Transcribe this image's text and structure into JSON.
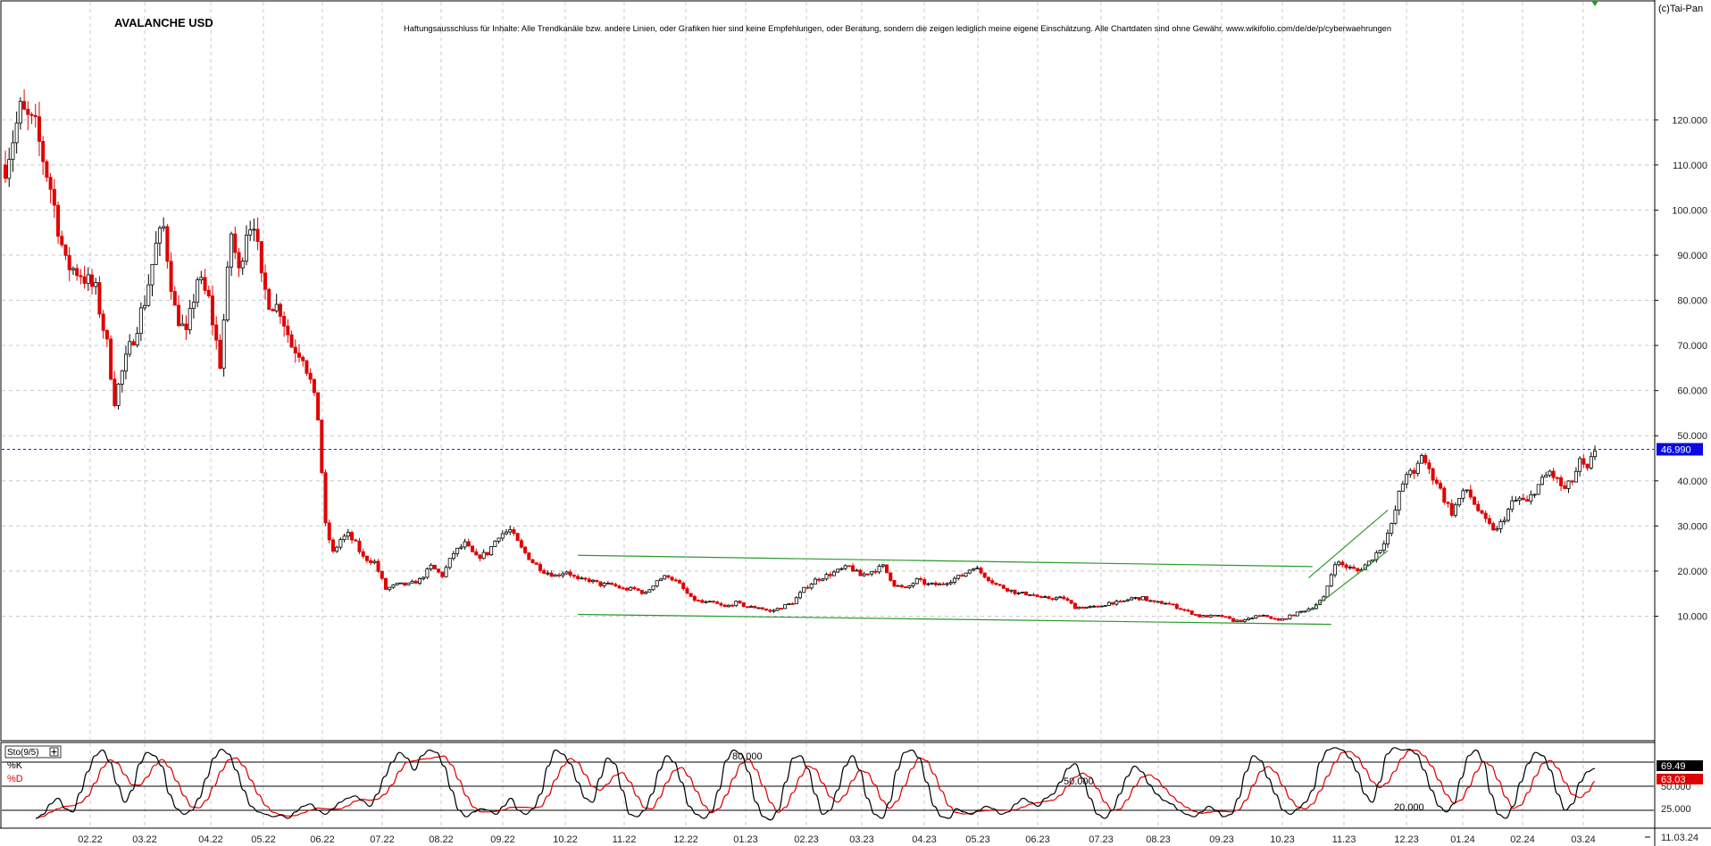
{
  "chart_data": [
    {
      "type": "candlestick",
      "title": "AVALANCHE USD",
      "disclaimer": "Haftungsausschluss für Inhalte: Alle Trendkanäle bzw. andere Linien, oder Grafiken hier sind keine Empfehlungen, oder Beratung, sondern die zeigen lediglich meine eigene Einschätzung. Alle Chartdaten sind ohne Gewähr. www.wikifolio.com/de/de/p/cyberwaehrungen",
      "copyright": "(c)Tai-Pan",
      "ylim": [
        0,
        127
      ],
      "yticks": [
        "120.000",
        "110.000",
        "100.000",
        "90.000",
        "80.000",
        "70.000",
        "60.000",
        "50.000",
        "40.000",
        "30.000",
        "20.000",
        "10.000"
      ],
      "ytick_values": [
        120,
        110,
        100,
        90,
        80,
        70,
        60,
        50,
        40,
        30,
        20,
        10
      ],
      "xticks": [
        "02.22",
        "03.22",
        "04.22",
        "05.22",
        "06.22",
        "07.22",
        "08.22",
        "09.22",
        "10.22",
        "11.22",
        "12.22",
        "01.23",
        "02.23",
        "03.23",
        "04.23",
        "05.23",
        "06.23",
        "07.23",
        "08.23",
        "09.23",
        "10.23",
        "11.23",
        "12.23",
        "01.24",
        "02.24",
        "03.24"
      ],
      "last_price": 46.99,
      "last_price_label": "46.990",
      "price_path": [
        [
          0,
          110
        ],
        [
          4,
          122
        ],
        [
          8,
          118
        ],
        [
          12,
          105
        ],
        [
          16,
          88
        ],
        [
          20,
          86
        ],
        [
          24,
          82
        ],
        [
          27,
          70
        ],
        [
          29,
          58
        ],
        [
          31,
          64
        ],
        [
          34,
          72
        ],
        [
          37,
          80
        ],
        [
          40,
          92
        ],
        [
          42,
          96
        ],
        [
          45,
          78
        ],
        [
          48,
          72
        ],
        [
          51,
          85
        ],
        [
          54,
          80
        ],
        [
          57,
          66
        ],
        [
          60,
          95
        ],
        [
          62,
          86
        ],
        [
          64,
          96
        ],
        [
          66,
          98
        ],
        [
          68,
          84
        ],
        [
          70,
          80
        ],
        [
          73,
          78
        ],
        [
          76,
          70
        ],
        [
          79,
          68
        ],
        [
          81,
          62
        ],
        [
          83,
          54
        ],
        [
          85,
          30
        ],
        [
          87,
          24
        ],
        [
          89,
          27
        ],
        [
          91,
          28
        ],
        [
          93,
          26
        ],
        [
          95,
          23
        ],
        [
          98,
          22
        ],
        [
          101,
          16
        ],
        [
          104,
          17
        ],
        [
          107,
          17
        ],
        [
          110,
          18
        ],
        [
          113,
          21
        ],
        [
          116,
          19
        ],
        [
          119,
          24
        ],
        [
          122,
          26
        ],
        [
          125,
          23
        ],
        [
          128,
          24
        ],
        [
          131,
          28
        ],
        [
          134,
          29
        ],
        [
          137,
          25
        ],
        [
          140,
          22
        ],
        [
          143,
          20
        ],
        [
          146,
          19
        ],
        [
          149,
          20
        ],
        [
          152,
          18
        ],
        [
          155,
          18
        ],
        [
          158,
          17
        ],
        [
          161,
          17
        ],
        [
          164,
          16
        ],
        [
          167,
          16
        ],
        [
          170,
          15
        ],
        [
          173,
          18
        ],
        [
          176,
          19
        ],
        [
          179,
          17
        ],
        [
          182,
          14
        ],
        [
          185,
          13
        ],
        [
          188,
          13
        ],
        [
          191,
          12
        ],
        [
          194,
          13
        ],
        [
          197,
          12
        ],
        [
          200,
          12
        ],
        [
          203,
          11
        ],
        [
          206,
          12
        ],
        [
          209,
          13
        ],
        [
          212,
          16
        ],
        [
          215,
          18
        ],
        [
          218,
          19
        ],
        [
          221,
          20
        ],
        [
          224,
          21
        ],
        [
          227,
          19
        ],
        [
          230,
          20
        ],
        [
          233,
          21
        ],
        [
          236,
          17
        ],
        [
          239,
          16
        ],
        [
          242,
          18
        ],
        [
          245,
          17
        ],
        [
          248,
          17
        ],
        [
          251,
          18
        ],
        [
          254,
          19
        ],
        [
          257,
          21
        ],
        [
          260,
          19
        ],
        [
          263,
          17
        ],
        [
          266,
          16
        ],
        [
          269,
          15
        ],
        [
          272,
          15
        ],
        [
          275,
          14
        ],
        [
          278,
          14
        ],
        [
          281,
          14
        ],
        [
          284,
          12
        ],
        [
          287,
          12
        ],
        [
          290,
          12
        ],
        [
          293,
          13
        ],
        [
          296,
          13
        ],
        [
          299,
          14
        ],
        [
          302,
          14
        ],
        [
          305,
          13
        ],
        [
          308,
          13
        ],
        [
          311,
          12
        ],
        [
          314,
          11
        ],
        [
          317,
          10
        ],
        [
          320,
          10
        ],
        [
          323,
          10
        ],
        [
          326,
          9
        ],
        [
          329,
          9
        ],
        [
          332,
          10
        ],
        [
          335,
          10
        ],
        [
          338,
          9
        ],
        [
          341,
          10
        ],
        [
          344,
          11
        ],
        [
          347,
          12
        ],
        [
          350,
          14
        ],
        [
          353,
          22
        ],
        [
          356,
          21
        ],
        [
          359,
          20
        ],
        [
          362,
          22
        ],
        [
          365,
          25
        ],
        [
          368,
          30
        ],
        [
          370,
          37
        ],
        [
          372,
          42
        ],
        [
          374,
          41
        ],
        [
          376,
          46
        ],
        [
          378,
          42
        ],
        [
          380,
          40
        ],
        [
          382,
          36
        ],
        [
          384,
          33
        ],
        [
          386,
          36
        ],
        [
          388,
          38
        ],
        [
          390,
          35
        ],
        [
          392,
          32
        ],
        [
          394,
          30
        ],
        [
          396,
          29
        ],
        [
          398,
          32
        ],
        [
          400,
          35
        ],
        [
          402,
          36
        ],
        [
          404,
          35
        ],
        [
          406,
          38
        ],
        [
          408,
          40
        ],
        [
          410,
          42
        ],
        [
          412,
          40
        ],
        [
          414,
          38
        ],
        [
          416,
          40
        ],
        [
          418,
          44
        ],
        [
          420,
          42
        ],
        [
          422,
          47
        ]
      ],
      "trend_lines": [
        {
          "name": "channel-upper",
          "from": [
            152,
            23.5
          ],
          "to": [
            347,
            21.0
          ]
        },
        {
          "name": "channel-lower",
          "from": [
            152,
            10.4
          ],
          "to": [
            352,
            8.2
          ]
        },
        {
          "name": "uptrend-upper",
          "from": [
            346,
            18.5
          ],
          "to": [
            367,
            33.5
          ]
        },
        {
          "name": "uptrend-lower",
          "from": [
            346,
            11.0
          ],
          "to": [
            367,
            24.5
          ]
        }
      ]
    },
    {
      "type": "line",
      "title": "Sto(9/5)",
      "series": [
        {
          "name": "%K",
          "color": "#000000",
          "last_value": "69.49"
        },
        {
          "name": "%D",
          "color": "#e00000",
          "last_value": "63.03"
        }
      ],
      "levels": [
        "80.000",
        "50.000",
        "20.000"
      ],
      "level_values": [
        80,
        50,
        20
      ],
      "right_labels": [
        "50.000",
        "25.000"
      ],
      "right_label_values": [
        50,
        25
      ],
      "date_label": "11.03.24",
      "k_values": [
        10,
        15,
        28,
        35,
        22,
        18,
        42,
        68,
        88,
        95,
        80,
        52,
        30,
        45,
        78,
        92,
        88,
        75,
        40,
        22,
        15,
        20,
        35,
        60,
        85,
        96,
        90,
        70,
        45,
        25,
        18,
        15,
        12,
        14,
        10,
        18,
        25,
        28,
        20,
        15,
        22,
        30,
        35,
        38,
        32,
        25,
        40,
        62,
        80,
        92,
        85,
        70,
        88,
        95,
        92,
        75,
        45,
        20,
        12,
        18,
        22,
        20,
        15,
        25,
        35,
        20,
        15,
        22,
        40,
        75,
        95,
        90,
        78,
        55,
        35,
        30,
        60,
        85,
        78,
        45,
        15,
        12,
        20,
        40,
        70,
        88,
        80,
        55,
        25,
        15,
        10,
        18,
        45,
        82,
        95,
        90,
        68,
        30,
        12,
        8,
        20,
        55,
        85,
        88,
        72,
        40,
        15,
        20,
        45,
        75,
        88,
        70,
        35,
        15,
        10,
        30,
        70,
        92,
        95,
        85,
        55,
        25,
        12,
        10,
        22,
        18,
        15,
        20,
        25,
        22,
        15,
        18,
        28,
        35,
        30,
        25,
        35,
        40,
        55,
        72,
        78,
        60,
        35,
        15,
        10,
        20,
        40,
        62,
        75,
        68,
        52,
        40,
        32,
        28,
        20,
        15,
        12,
        18,
        25,
        20,
        12,
        15,
        35,
        68,
        88,
        82,
        60,
        40,
        20,
        15,
        22,
        30,
        45,
        80,
        95,
        98,
        95,
        85,
        68,
        40,
        30,
        55,
        90,
        98,
        95,
        96,
        90,
        70,
        45,
        25,
        18,
        28,
        60,
        88,
        95,
        80,
        40,
        15,
        10,
        25,
        55,
        78,
        92,
        88,
        70,
        40,
        20,
        28,
        55,
        68,
        72
      ]
    }
  ]
}
